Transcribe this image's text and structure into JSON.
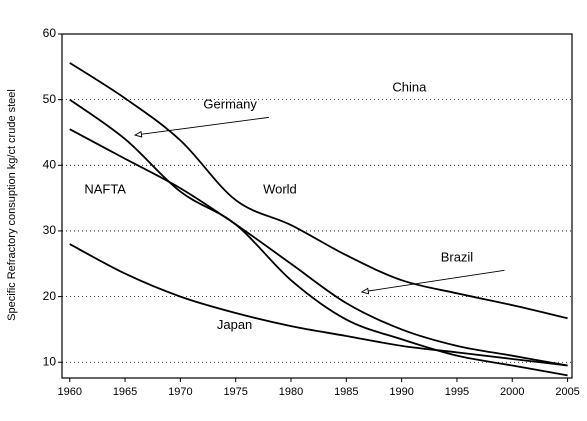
{
  "chart_data": {
    "type": "line",
    "ylabel": "Specific Refractory consuption kg/ct crude steel",
    "x": [
      1960,
      1965,
      1970,
      1975,
      1980,
      1985,
      1990,
      1995,
      2000,
      2005
    ],
    "series": [
      {
        "color": "#000000",
        "values": [
          55.6,
          50.2,
          43.8,
          34.7,
          30.9,
          26.3,
          22.5,
          20.5,
          18.7,
          16.7
        ]
      },
      {
        "color": "#000000",
        "values": [
          50,
          44,
          36,
          31,
          22.5,
          16.5,
          13.5,
          11,
          9.5,
          8
        ]
      },
      {
        "color": "#000000",
        "values": [
          45.5,
          41,
          36.5,
          31,
          25,
          19,
          15,
          12.5,
          11,
          9.5
        ]
      },
      {
        "color": "#000000",
        "values": [
          28,
          23.5,
          20,
          17.5,
          15.5,
          14,
          12.5,
          11.5,
          10.5,
          9.5
        ]
      }
    ],
    "annotations": [
      {
        "text": "China",
        "x": 1990.7,
        "y": 51.8
      },
      {
        "text": "Germany",
        "x": 1974.5,
        "y": 49.2,
        "arrow": [
          [
            1978,
            47.3
          ],
          [
            1965.9,
            44.6
          ]
        ]
      },
      {
        "text": "NAFTA",
        "x": 1963.2,
        "y": 36.2
      },
      {
        "text": "World",
        "x": 1979,
        "y": 36.2
      },
      {
        "text": "Brazil",
        "x": 1995,
        "y": 25.9,
        "arrow": [
          [
            1999.3,
            24
          ],
          [
            1986.4,
            20.7
          ]
        ]
      },
      {
        "text": "Japan",
        "x": 1974.9,
        "y": 15.6
      }
    ],
    "xlim": [
      1959.3,
      2005.4
    ],
    "ylim": [
      7.6,
      60
    ],
    "xticks": [
      1960,
      1965,
      1970,
      1975,
      1980,
      1985,
      1990,
      1995,
      2000,
      2005
    ],
    "yticks": [
      10,
      20,
      30,
      40,
      50,
      60
    ],
    "grid": true
  }
}
